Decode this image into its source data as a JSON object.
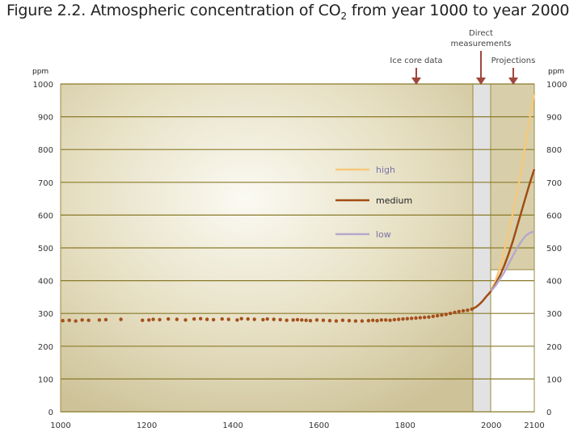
{
  "title_main": "Figure 2.2. Atmospheric concentration of CO",
  "title_sub": "2",
  "title_end": " from year 1000 to year 2000",
  "annotations": {
    "ice_core": "Ice core data",
    "direct_line1": "Direct",
    "direct_line2": "measurements",
    "projections": "Projections"
  },
  "axis_unit": "ppm",
  "colors": {
    "grid": "#8a7a2a",
    "panel_bg": "#d8cfaa",
    "arrow": "#a0473d",
    "high": "#f5c87a",
    "medium": "#a24d12",
    "low": "#b4a8cc",
    "dots": "#a5501d"
  },
  "chart_data": {
    "type": "line",
    "xlim": [
      1000,
      2100
    ],
    "ylim": [
      0,
      1000
    ],
    "x_ticks": [
      1000,
      1200,
      1400,
      1600,
      1800,
      2000,
      2100
    ],
    "y_ticks": [
      0,
      100,
      200,
      300,
      400,
      500,
      600,
      700,
      800,
      900,
      1000
    ],
    "ice_core_data": {
      "x": [
        1005,
        1020,
        1035,
        1050,
        1065,
        1090,
        1105,
        1140,
        1190,
        1205,
        1215,
        1230,
        1250,
        1270,
        1290,
        1310,
        1325,
        1340,
        1355,
        1375,
        1390,
        1410,
        1420,
        1435,
        1450,
        1470,
        1480,
        1495,
        1510,
        1525,
        1540,
        1550,
        1560,
        1570,
        1580,
        1595,
        1610,
        1625,
        1640,
        1655,
        1670,
        1685,
        1700,
        1715,
        1725,
        1735,
        1745,
        1755,
        1765,
        1775,
        1785,
        1795,
        1805,
        1815,
        1825,
        1835,
        1845,
        1855,
        1865,
        1875,
        1885,
        1895,
        1905,
        1915,
        1925,
        1935,
        1945,
        1955
      ],
      "y": [
        278,
        279,
        277,
        280,
        279,
        280,
        281,
        282,
        279,
        280,
        282,
        281,
        283,
        282,
        280,
        283,
        284,
        282,
        281,
        283,
        282,
        280,
        284,
        283,
        282,
        281,
        283,
        282,
        281,
        279,
        280,
        281,
        280,
        279,
        278,
        280,
        279,
        278,
        277,
        279,
        278,
        277,
        277,
        278,
        279,
        278,
        280,
        280,
        279,
        281,
        282,
        283,
        284,
        285,
        286,
        287,
        288,
        289,
        291,
        293,
        295,
        297,
        300,
        303,
        306,
        308,
        310,
        313
      ]
    },
    "direct_measurements": {
      "x": [
        1958,
        1965,
        1970,
        1975,
        1980,
        1985,
        1990,
        1995,
        2000
      ],
      "y": [
        315,
        320,
        325,
        331,
        338,
        346,
        354,
        361,
        369
      ]
    },
    "series": [
      {
        "name": "high",
        "x": [
          2000,
          2010,
          2020,
          2030,
          2040,
          2050,
          2060,
          2070,
          2080,
          2090,
          2100
        ],
        "y": [
          369,
          400,
          440,
          490,
          545,
          605,
          670,
          740,
          820,
          900,
          970
        ]
      },
      {
        "name": "medium",
        "x": [
          2000,
          2010,
          2020,
          2030,
          2040,
          2050,
          2060,
          2070,
          2080,
          2090,
          2100
        ],
        "y": [
          369,
          390,
          415,
          445,
          480,
          520,
          565,
          610,
          655,
          700,
          740
        ]
      },
      {
        "name": "low",
        "x": [
          2000,
          2010,
          2020,
          2030,
          2040,
          2050,
          2060,
          2070,
          2080,
          2090,
          2100
        ],
        "y": [
          369,
          385,
          405,
          425,
          450,
          475,
          500,
          520,
          537,
          546,
          550
        ]
      }
    ],
    "grid": true,
    "legend_position": "center"
  }
}
